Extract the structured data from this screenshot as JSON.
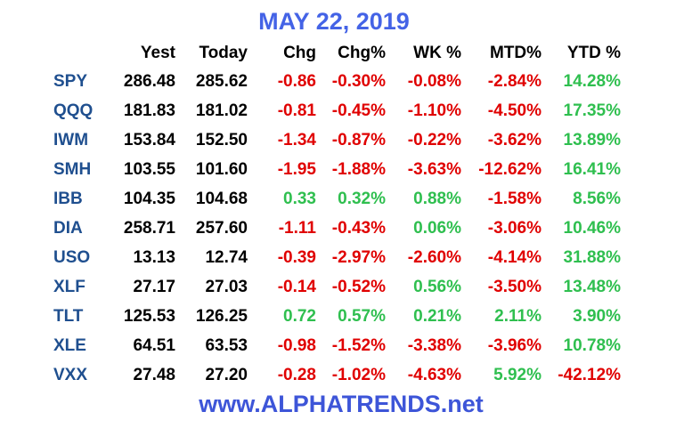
{
  "title": "MAY 22, 2019",
  "table": {
    "header": [
      "Yest",
      "Today",
      "Chg",
      "Chg%",
      "WK %",
      "MTD%",
      "YTD %"
    ],
    "rows": [
      [
        "SPY",
        "286.48",
        "285.62",
        "-0.86",
        "-0.30%",
        "-0.08%",
        "-2.84%",
        "14.28%"
      ],
      [
        "QQQ",
        "181.83",
        "181.02",
        "-0.81",
        "-0.45%",
        "-1.10%",
        "-4.50%",
        "17.35%"
      ],
      [
        "IWM",
        "153.84",
        "152.50",
        "-1.34",
        "-0.87%",
        "-0.22%",
        "-3.62%",
        "13.89%"
      ],
      [
        "SMH",
        "103.55",
        "101.60",
        "-1.95",
        "-1.88%",
        "-3.63%",
        "-12.62%",
        "16.41%"
      ],
      [
        "IBB",
        "104.35",
        "104.68",
        "0.33",
        "0.32%",
        "0.88%",
        "-1.58%",
        "8.56%"
      ],
      [
        "DIA",
        "258.71",
        "257.60",
        "-1.11",
        "-0.43%",
        "0.06%",
        "-3.06%",
        "10.46%"
      ],
      [
        "USO",
        "13.13",
        "12.74",
        "-0.39",
        "-2.97%",
        "-2.60%",
        "-4.14%",
        "31.88%"
      ],
      [
        "XLF",
        "27.17",
        "27.03",
        "-0.14",
        "-0.52%",
        "0.56%",
        "-3.50%",
        "13.48%"
      ],
      [
        "TLT",
        "125.53",
        "126.25",
        "0.72",
        "0.57%",
        "0.21%",
        "2.11%",
        "3.90%"
      ],
      [
        "XLE",
        "64.51",
        "63.53",
        "-0.98",
        "-1.52%",
        "-3.38%",
        "-3.96%",
        "10.78%"
      ],
      [
        "VXX",
        "27.48",
        "27.20",
        "-0.28",
        "-1.02%",
        "-4.63%",
        "5.92%",
        "-42.12%"
      ]
    ]
  },
  "footer": "www.ALPHATRENDS.net"
}
